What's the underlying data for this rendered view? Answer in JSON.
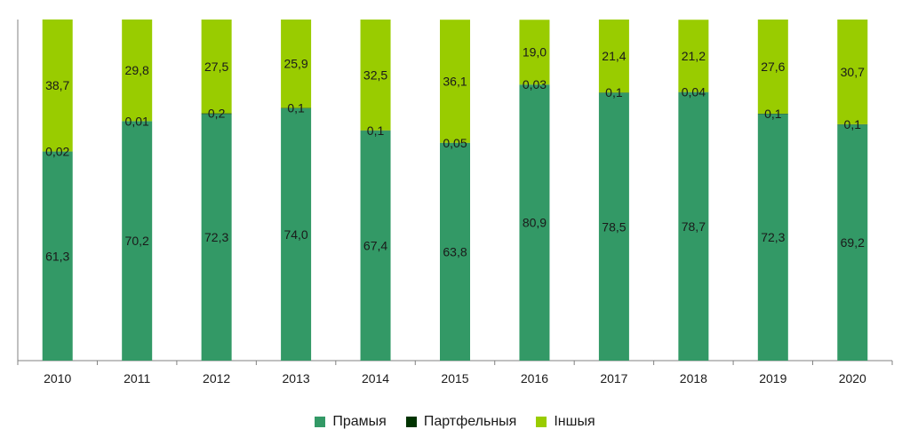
{
  "chart_data": {
    "type": "bar",
    "stacked": true,
    "categories": [
      "2010",
      "2011",
      "2012",
      "2013",
      "2014",
      "2015",
      "2016",
      "2017",
      "2018",
      "2019",
      "2020"
    ],
    "series": [
      {
        "name": "Прамыя",
        "color": "#339966",
        "values": [
          61.3,
          70.2,
          72.3,
          74.0,
          67.4,
          63.8,
          80.9,
          78.5,
          78.7,
          72.3,
          69.2
        ],
        "labels": [
          "61,3",
          "70,2",
          "72,3",
          "74,0",
          "67,4",
          "63,8",
          "80,9",
          "78,5",
          "78,7",
          "72,3",
          "69,2"
        ]
      },
      {
        "name": "Партфельныя",
        "color": "#003300",
        "values": [
          0.02,
          0.01,
          0.2,
          0.1,
          0.1,
          0.05,
          0.03,
          0.1,
          0.04,
          0.1,
          0.1
        ],
        "labels": [
          "0,02",
          "0,01",
          "0,2",
          "0,1",
          "0,1",
          "0,05",
          "0,03",
          "0,1",
          "0,04",
          "0,1",
          "0,1"
        ]
      },
      {
        "name": "Іншыя",
        "color": "#99CC00",
        "values": [
          38.7,
          29.8,
          27.5,
          25.9,
          32.5,
          36.1,
          19.0,
          21.4,
          21.2,
          27.6,
          30.7
        ],
        "labels": [
          "38,7",
          "29,8",
          "27,5",
          "25,9",
          "32,5",
          "36,1",
          "19,0",
          "21,4",
          "21,2",
          "27,6",
          "30,7"
        ]
      }
    ],
    "ylim": [
      0,
      100
    ],
    "grid": false,
    "legend_position": "bottom"
  }
}
